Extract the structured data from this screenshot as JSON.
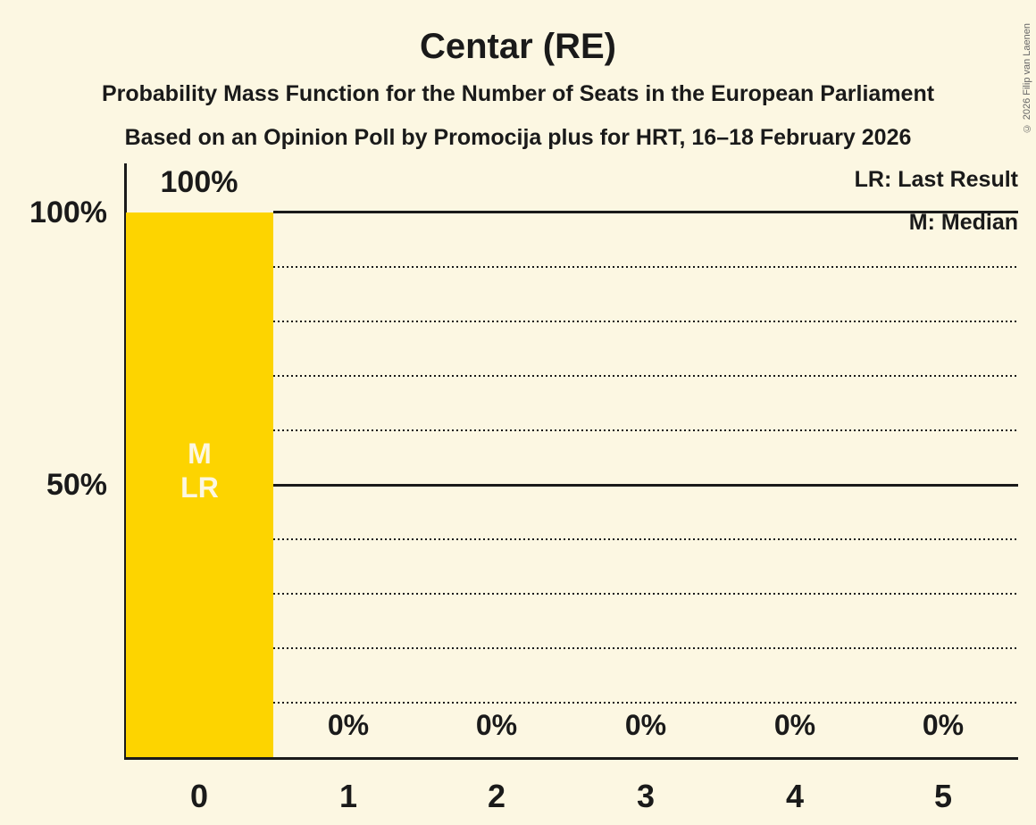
{
  "title": "Centar (RE)",
  "subtitle1": "Probability Mass Function for the Number of Seats in the European Parliament",
  "subtitle2": "Based on an Opinion Poll by Promocija plus for HRT, 16–18 February 2026",
  "copyright": "© 2026 Filip van Laenen",
  "legend": {
    "lr": "LR: Last Result",
    "m": "M: Median"
  },
  "y_axis": {
    "tick_100": "100%",
    "tick_50": "50%"
  },
  "bar_annotations": {
    "median": "M",
    "last_result": "LR"
  },
  "colors": {
    "background": "#FCF7E2",
    "bar": "#FDD400",
    "text": "#1A1A1A",
    "bar_text": "#FCF7E2",
    "copyright_text": "#666666"
  },
  "chart_data": {
    "type": "bar",
    "title": "Centar (RE)",
    "categories": [
      "0",
      "1",
      "2",
      "3",
      "4",
      "5"
    ],
    "values": [
      100,
      0,
      0,
      0,
      0,
      0
    ],
    "value_labels": [
      "100%",
      "0%",
      "0%",
      "0%",
      "0%",
      "0%"
    ],
    "ylim": [
      0,
      100
    ],
    "y_tick_labels": [
      "100%",
      "50%"
    ],
    "grid": "dotted horizontal lines every 10%, solid lines at 50% and 100%",
    "legend_position": "top-right",
    "legend_entries": [
      "LR: Last Result",
      "M: Median"
    ],
    "median_seats": 0,
    "last_result_seats": 0,
    "bar_color": "#FDD400"
  }
}
